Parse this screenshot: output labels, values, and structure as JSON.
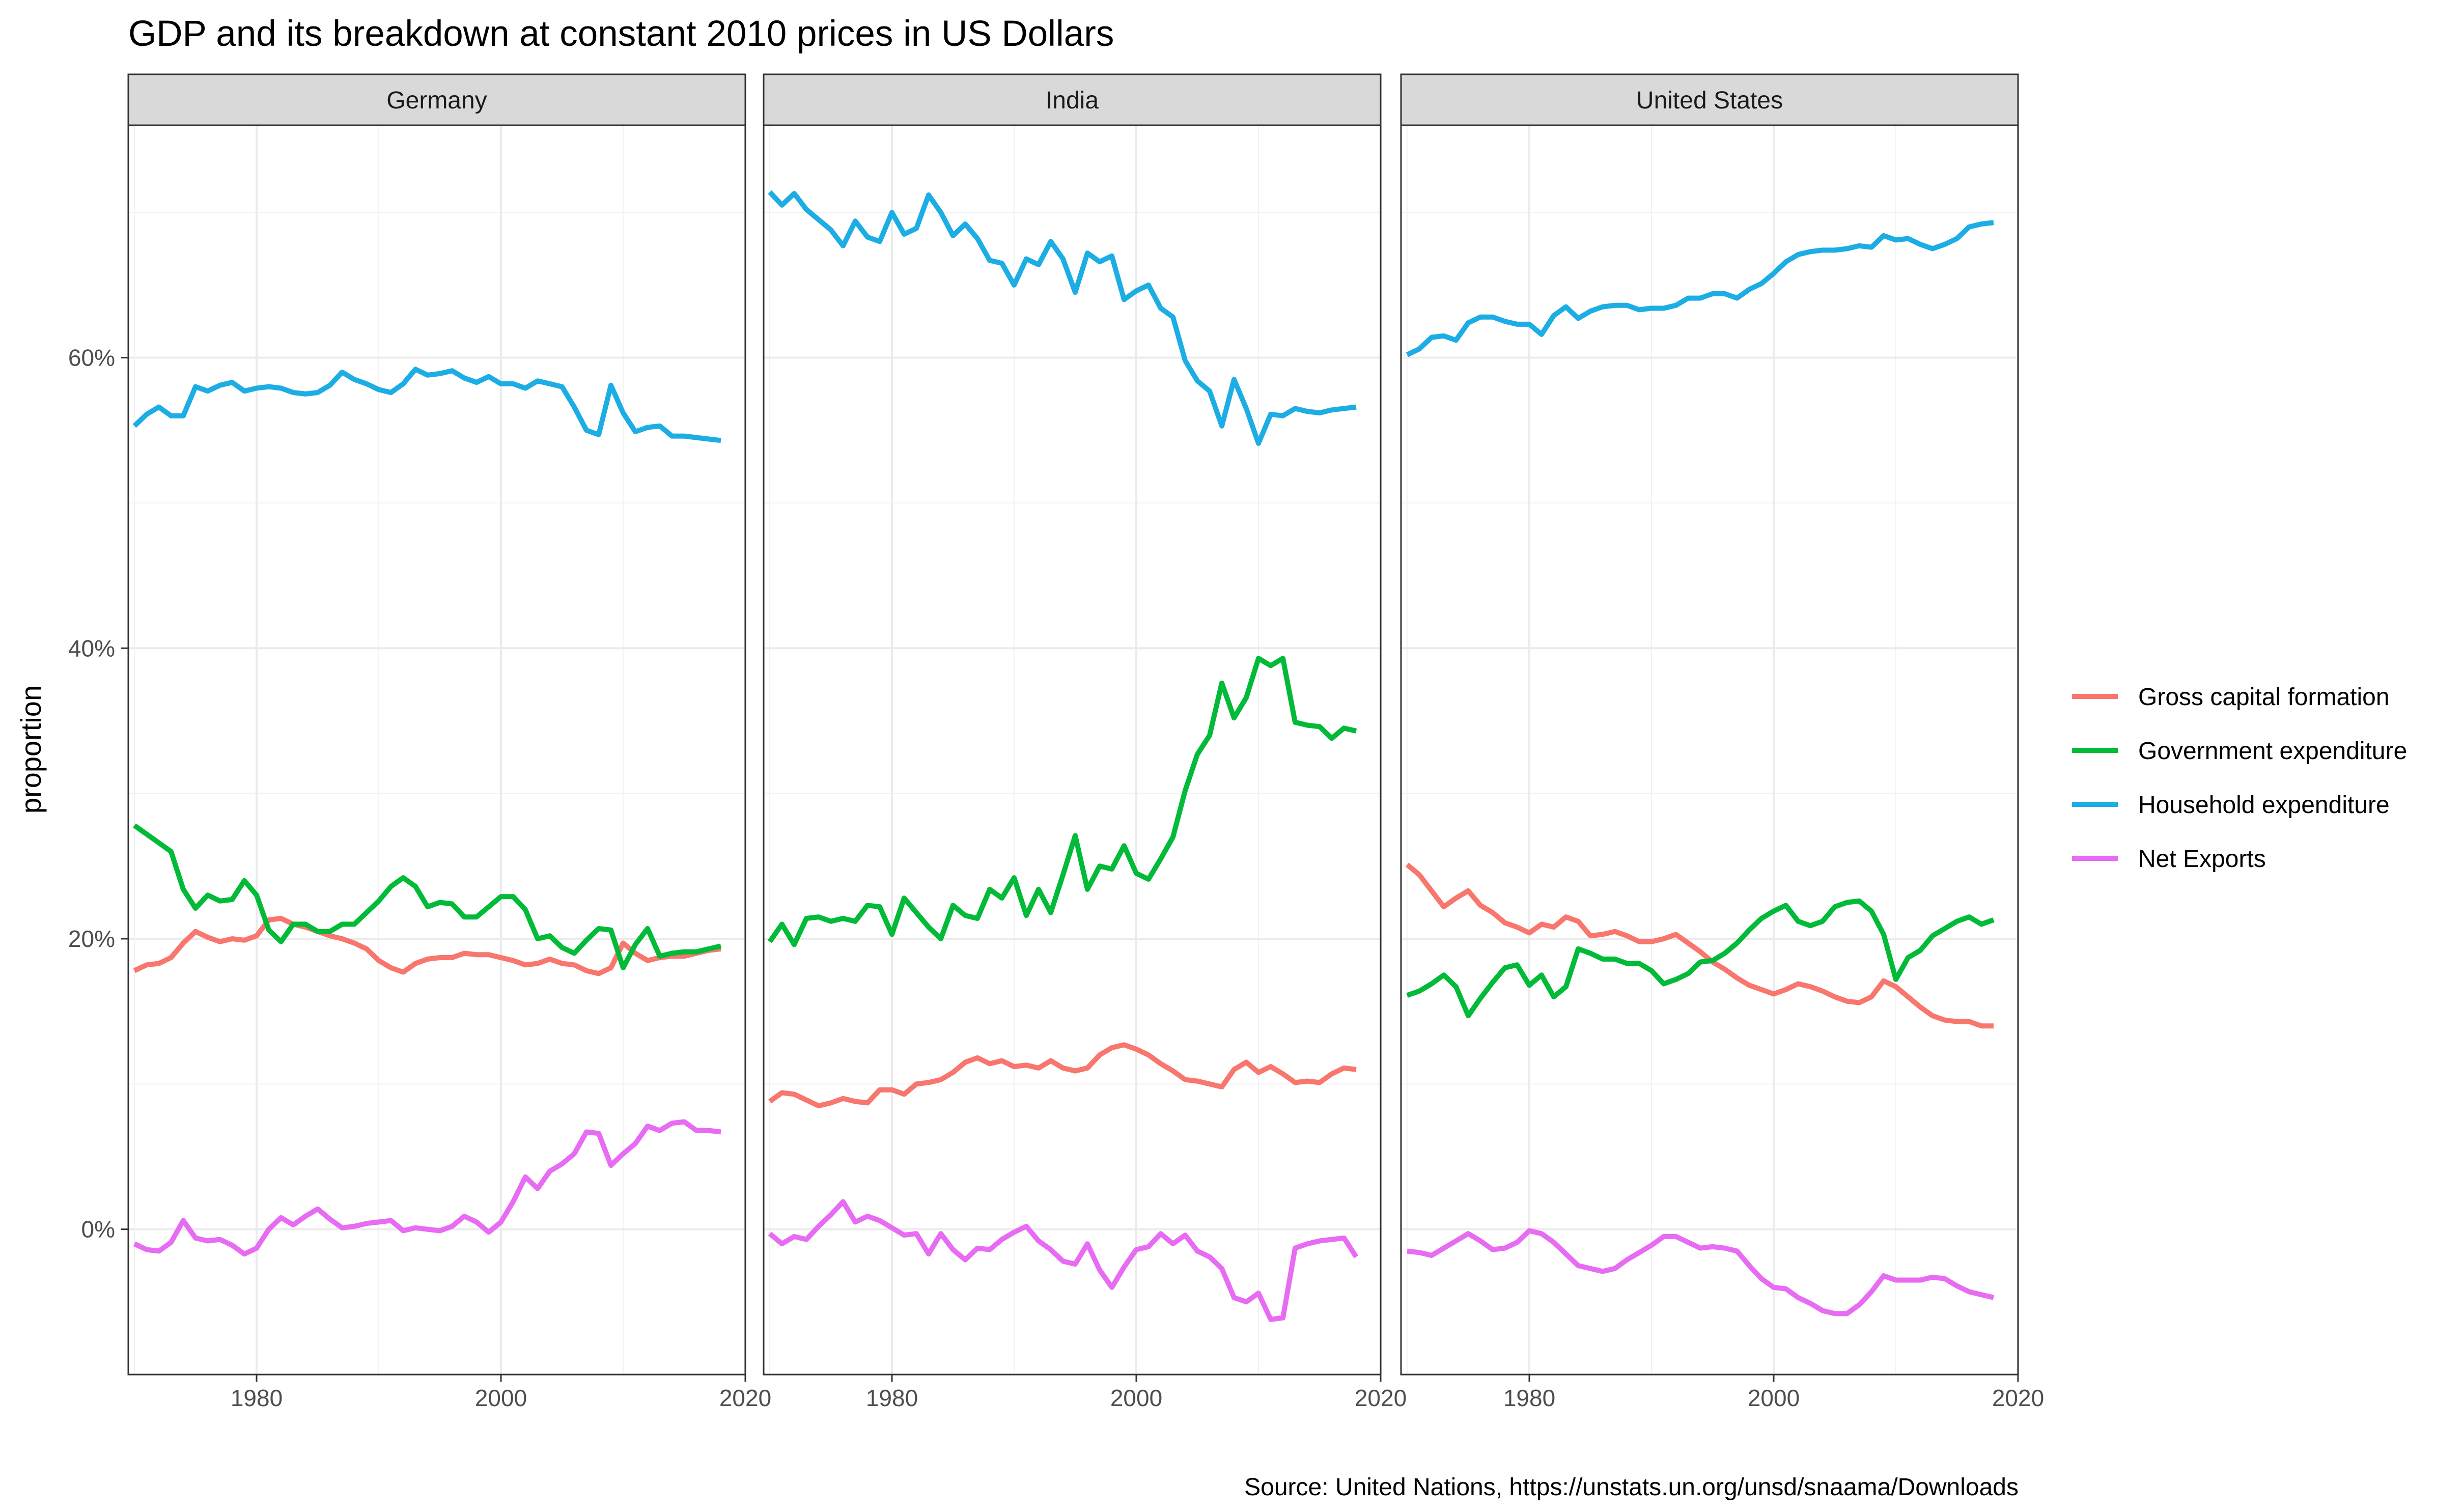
{
  "chart_data": {
    "type": "line",
    "title": "GDP and its breakdown at constant 2010 prices in US Dollars",
    "ylabel": "proportion",
    "xlabel": "",
    "caption": "Source: United Nations, https://unstats.un.org/unsd/snaama/Downloads",
    "xlim": [
      1969.5,
      2020
    ],
    "ylim": [
      -0.1,
      0.76
    ],
    "x_ticks": [
      1980,
      2000,
      2020
    ],
    "y_ticks": [
      0,
      0.2,
      0.4,
      0.6
    ],
    "y_tick_labels": [
      "0%",
      "20%",
      "40%",
      "60%"
    ],
    "x_tick_labels": [
      "1980",
      "2000",
      "2020"
    ],
    "grid": true,
    "legend_position": "right",
    "x_start": 1970,
    "x_end": 2018,
    "legend": [
      {
        "name": "Gross capital formation",
        "color": "#F8766D"
      },
      {
        "name": "Government expenditure",
        "color": "#00BA38"
      },
      {
        "name": "Household expenditure",
        "color": "#1CADE4"
      },
      {
        "name": "Net Exports",
        "color": "#E76BF3"
      }
    ],
    "panels": [
      {
        "name": "Germany",
        "series": [
          {
            "name": "Gross capital formation",
            "values": [
              0.178,
              0.182,
              0.183,
              0.187,
              0.197,
              0.205,
              0.201,
              0.198,
              0.2,
              0.199,
              0.202,
              0.213,
              0.214,
              0.21,
              0.208,
              0.205,
              0.202,
              0.2,
              0.197,
              0.193,
              0.185,
              0.18,
              0.177,
              0.183,
              0.186,
              0.187,
              0.187,
              0.19,
              0.189,
              0.189,
              0.187,
              0.185,
              0.182,
              0.183,
              0.186,
              0.183,
              0.182,
              0.178,
              0.176,
              0.18,
              0.197,
              0.19,
              0.185,
              0.187,
              0.188,
              0.188,
              0.19,
              0.192,
              0.193
            ]
          },
          {
            "name": "Government expenditure",
            "values": [
              0.278,
              0.272,
              0.266,
              0.26,
              0.234,
              0.221,
              0.23,
              0.226,
              0.227,
              0.24,
              0.23,
              0.206,
              0.198,
              0.21,
              0.21,
              0.205,
              0.205,
              0.21,
              0.21,
              0.218,
              0.226,
              0.236,
              0.242,
              0.236,
              0.222,
              0.225,
              0.224,
              0.215,
              0.215,
              0.222,
              0.229,
              0.229,
              0.22,
              0.2,
              0.202,
              0.194,
              0.19,
              0.199,
              0.207,
              0.206,
              0.18,
              0.196,
              0.207,
              0.188,
              0.19,
              0.191,
              0.191,
              0.193,
              0.195
            ]
          },
          {
            "name": "Household expenditure",
            "values": [
              0.553,
              0.561,
              0.566,
              0.56,
              0.56,
              0.58,
              0.577,
              0.581,
              0.583,
              0.577,
              0.579,
              0.58,
              0.579,
              0.576,
              0.575,
              0.576,
              0.581,
              0.59,
              0.585,
              0.582,
              0.578,
              0.576,
              0.582,
              0.592,
              0.588,
              0.589,
              0.591,
              0.586,
              0.583,
              0.587,
              0.582,
              0.582,
              0.579,
              0.584,
              0.582,
              0.58,
              0.566,
              0.55,
              0.547,
              0.581,
              0.562,
              0.549,
              0.552,
              0.553,
              0.546,
              0.546,
              0.545,
              0.544,
              0.543
            ]
          },
          {
            "name": "Net Exports",
            "values": [
              -0.01,
              -0.014,
              -0.015,
              -0.009,
              0.006,
              -0.006,
              -0.008,
              -0.007,
              -0.011,
              -0.017,
              -0.013,
              0.0,
              0.008,
              0.003,
              0.009,
              0.014,
              0.007,
              0.001,
              0.002,
              0.004,
              0.005,
              0.006,
              -0.001,
              0.001,
              0.0,
              -0.001,
              0.002,
              0.009,
              0.005,
              -0.002,
              0.005,
              0.019,
              0.036,
              0.028,
              0.04,
              0.045,
              0.052,
              0.067,
              0.066,
              0.044,
              0.052,
              0.059,
              0.071,
              0.068,
              0.073,
              0.074,
              0.068,
              0.068,
              0.067
            ]
          }
        ]
      },
      {
        "name": "India",
        "series": [
          {
            "name": "Gross capital formation",
            "values": [
              0.088,
              0.094,
              0.093,
              0.089,
              0.085,
              0.087,
              0.09,
              0.088,
              0.087,
              0.096,
              0.096,
              0.093,
              0.1,
              0.101,
              0.103,
              0.108,
              0.115,
              0.118,
              0.114,
              0.116,
              0.112,
              0.113,
              0.111,
              0.116,
              0.111,
              0.109,
              0.111,
              0.12,
              0.125,
              0.127,
              0.124,
              0.12,
              0.114,
              0.109,
              0.103,
              0.102,
              0.1,
              0.098,
              0.11,
              0.115,
              0.108,
              0.112,
              0.107,
              0.101,
              0.102,
              0.101,
              0.107,
              0.111,
              0.11
            ]
          },
          {
            "name": "Government expenditure",
            "values": [
              0.198,
              0.21,
              0.196,
              0.214,
              0.215,
              0.212,
              0.214,
              0.212,
              0.223,
              0.222,
              0.203,
              0.228,
              0.218,
              0.208,
              0.2,
              0.223,
              0.216,
              0.214,
              0.234,
              0.228,
              0.242,
              0.216,
              0.234,
              0.218,
              0.244,
              0.271,
              0.234,
              0.25,
              0.248,
              0.264,
              0.245,
              0.241,
              0.255,
              0.27,
              0.302,
              0.327,
              0.34,
              0.376,
              0.352,
              0.366,
              0.393,
              0.388,
              0.393,
              0.349,
              0.347,
              0.346,
              0.338,
              0.345,
              0.343
            ]
          },
          {
            "name": "Household expenditure",
            "values": [
              0.714,
              0.705,
              0.713,
              0.702,
              0.695,
              0.688,
              0.677,
              0.694,
              0.683,
              0.68,
              0.7,
              0.685,
              0.689,
              0.712,
              0.7,
              0.684,
              0.692,
              0.682,
              0.667,
              0.665,
              0.65,
              0.668,
              0.664,
              0.68,
              0.668,
              0.645,
              0.672,
              0.666,
              0.67,
              0.64,
              0.646,
              0.65,
              0.634,
              0.628,
              0.598,
              0.584,
              0.577,
              0.553,
              0.585,
              0.565,
              0.541,
              0.561,
              0.56,
              0.565,
              0.563,
              0.562,
              0.564,
              0.565,
              0.566
            ]
          },
          {
            "name": "Net Exports",
            "values": [
              -0.003,
              -0.01,
              -0.005,
              -0.007,
              0.002,
              0.01,
              0.019,
              0.005,
              0.009,
              0.006,
              0.001,
              -0.004,
              -0.003,
              -0.017,
              -0.003,
              -0.014,
              -0.021,
              -0.013,
              -0.014,
              -0.007,
              -0.002,
              0.002,
              -0.008,
              -0.014,
              -0.022,
              -0.024,
              -0.01,
              -0.028,
              -0.04,
              -0.026,
              -0.014,
              -0.012,
              -0.003,
              -0.01,
              -0.004,
              -0.015,
              -0.019,
              -0.027,
              -0.047,
              -0.05,
              -0.044,
              -0.062,
              -0.061,
              -0.013,
              -0.01,
              -0.008,
              -0.007,
              -0.006,
              -0.019
            ]
          }
        ]
      },
      {
        "name": "United States",
        "series": [
          {
            "name": "Gross capital formation",
            "values": [
              0.251,
              0.244,
              0.233,
              0.222,
              0.228,
              0.233,
              0.223,
              0.218,
              0.211,
              0.208,
              0.204,
              0.21,
              0.208,
              0.215,
              0.212,
              0.202,
              0.203,
              0.205,
              0.202,
              0.198,
              0.198,
              0.2,
              0.203,
              0.197,
              0.191,
              0.184,
              0.179,
              0.173,
              0.168,
              0.165,
              0.162,
              0.165,
              0.169,
              0.167,
              0.164,
              0.16,
              0.157,
              0.156,
              0.16,
              0.171,
              0.167,
              0.16,
              0.153,
              0.147,
              0.144,
              0.143,
              0.143,
              0.14,
              0.14
            ]
          },
          {
            "name": "Government expenditure",
            "values": [
              0.161,
              0.164,
              0.169,
              0.175,
              0.167,
              0.147,
              0.159,
              0.17,
              0.18,
              0.182,
              0.168,
              0.175,
              0.16,
              0.167,
              0.193,
              0.19,
              0.186,
              0.186,
              0.183,
              0.183,
              0.178,
              0.169,
              0.172,
              0.176,
              0.184,
              0.185,
              0.19,
              0.197,
              0.206,
              0.214,
              0.219,
              0.223,
              0.212,
              0.209,
              0.212,
              0.222,
              0.225,
              0.226,
              0.219,
              0.203,
              0.172,
              0.187,
              0.192,
              0.202,
              0.207,
              0.212,
              0.215,
              0.21,
              0.213
            ]
          },
          {
            "name": "Household expenditure",
            "values": [
              0.602,
              0.606,
              0.614,
              0.615,
              0.612,
              0.624,
              0.628,
              0.628,
              0.625,
              0.623,
              0.623,
              0.616,
              0.629,
              0.635,
              0.627,
              0.632,
              0.635,
              0.636,
              0.636,
              0.633,
              0.634,
              0.634,
              0.636,
              0.641,
              0.641,
              0.644,
              0.644,
              0.641,
              0.647,
              0.651,
              0.658,
              0.666,
              0.671,
              0.673,
              0.674,
              0.674,
              0.675,
              0.677,
              0.676,
              0.684,
              0.681,
              0.682,
              0.678,
              0.675,
              0.678,
              0.682,
              0.69,
              0.692,
              0.693
            ]
          },
          {
            "name": "Net Exports",
            "values": [
              -0.015,
              -0.016,
              -0.018,
              -0.013,
              -0.008,
              -0.003,
              -0.008,
              -0.014,
              -0.013,
              -0.009,
              -0.001,
              -0.003,
              -0.009,
              -0.017,
              -0.025,
              -0.027,
              -0.029,
              -0.027,
              -0.021,
              -0.016,
              -0.011,
              -0.005,
              -0.005,
              -0.009,
              -0.013,
              -0.012,
              -0.013,
              -0.015,
              -0.025,
              -0.034,
              -0.04,
              -0.041,
              -0.047,
              -0.051,
              -0.056,
              -0.058,
              -0.058,
              -0.052,
              -0.043,
              -0.032,
              -0.035,
              -0.035,
              -0.035,
              -0.033,
              -0.034,
              -0.039,
              -0.043,
              -0.045,
              -0.047
            ]
          }
        ]
      }
    ]
  }
}
